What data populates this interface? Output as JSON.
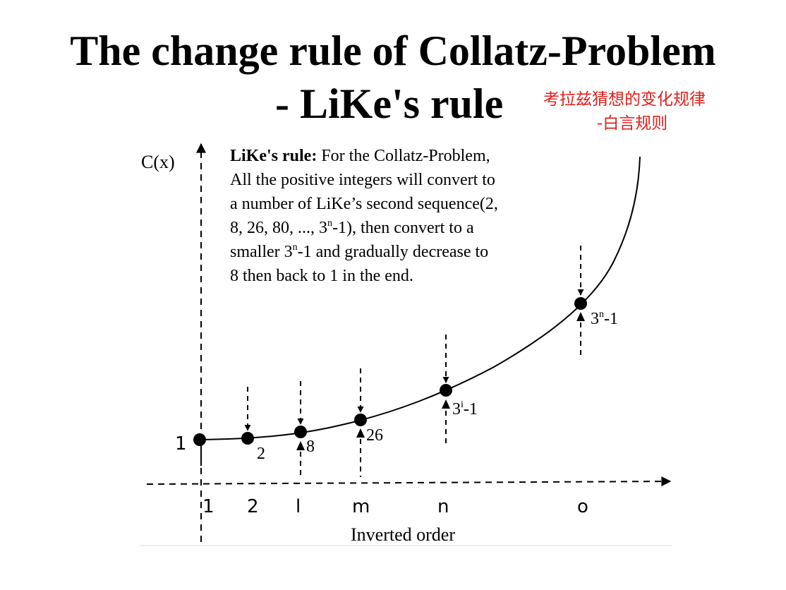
{
  "title": {
    "line1": "The change rule of Collatz-Problem",
    "line2": "- LiKe's rule"
  },
  "chinese_caption": {
    "line1": "考拉兹猜想的变化规律",
    "line2": "-白言规则"
  },
  "diagram": {
    "y_axis_label": "C(x)",
    "x_axis_label": "Inverted order",
    "x_ticks": [
      "1",
      "2",
      "l",
      "m",
      "n",
      "o"
    ],
    "rule_text": {
      "bold": "LiKe's rule:",
      "line1": " For the Collatz-Problem,",
      "line2": "All the positive integers will convert to",
      "line3a": "a number of LiKe’s second sequence(2,",
      "line4a": "8, 26, 80, ..., 3",
      "line4sup": "n",
      "line4b": "-1), then convert to a",
      "line5a": "smaller 3",
      "line5sup": "n",
      "line5b": "-1 and gradually decrease to",
      "line6": "8 then back to 1 in the end."
    },
    "point_labels": {
      "p1": "1",
      "p2": "2",
      "p8": "8",
      "p26": "26",
      "p3i_base": "3",
      "p3i_sup": "i",
      "p3i_tail": "-1",
      "p3n_base": "3",
      "p3n_sup": "n",
      "p3n_tail": "-1"
    },
    "colors": {
      "ink": "#000000",
      "caption": "#e0201a"
    }
  }
}
